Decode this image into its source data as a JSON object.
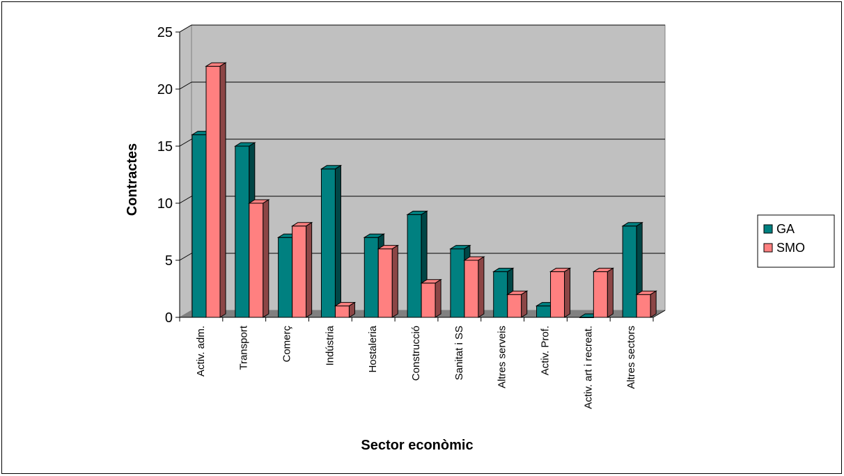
{
  "chart_data": {
    "type": "bar",
    "xlabel": "Sector econòmic",
    "ylabel": "Contractes",
    "ylim": [
      0,
      25
    ],
    "yticks": [
      0,
      5,
      10,
      15,
      20,
      25
    ],
    "grid": true,
    "legend_position": "right",
    "categories": [
      "Activ. adm.",
      "Transport",
      "Comerç",
      "Indústria",
      "Hostaleria",
      "Construcció",
      "Sanitat i SS",
      "Altres serveis",
      "Activ. Prof.",
      "Activ. art i recreat.",
      "Altres sectors"
    ],
    "series": [
      {
        "name": "GA",
        "color": "#008080",
        "values": [
          16,
          15,
          7,
          13,
          7,
          9,
          6,
          4,
          1,
          0,
          8
        ]
      },
      {
        "name": "SMO",
        "color": "#ff8080",
        "values": [
          22,
          10,
          8,
          1,
          6,
          3,
          5,
          2,
          4,
          4,
          2
        ]
      }
    ]
  }
}
